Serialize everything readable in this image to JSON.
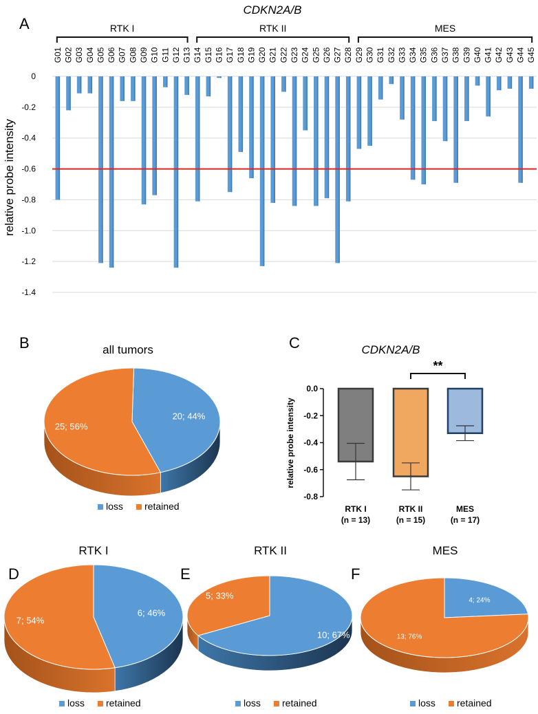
{
  "panels": {
    "A": "A",
    "B": "B",
    "C": "C",
    "D": "D",
    "E": "E",
    "F": "F"
  },
  "colors": {
    "loss": "#5b9bd5",
    "loss_side": "#1f3b55",
    "retained": "#ed7d31",
    "retained_side": "#9c4a12",
    "threshold": "#e0241b",
    "bar_rtk1": "#7f7f7f",
    "bar_rtk2": "#f0a860",
    "bar_mes": "#9db9de"
  },
  "chart_data": [
    {
      "type": "bar",
      "id": "A",
      "title": "CDKN2A/B",
      "ylabel": "relative probe intensity",
      "ylim": [
        -1.4,
        0
      ],
      "yticks": [
        "0",
        "-0.2",
        "-0.4",
        "-0.6",
        "-0.8",
        "-1.0",
        "-1.2",
        "-1.4"
      ],
      "threshold": -0.6,
      "groups": [
        {
          "name": "RTK I",
          "first": "G01",
          "last": "G13"
        },
        {
          "name": "RTK II",
          "first": "G14",
          "last": "G28"
        },
        {
          "name": "MES",
          "first": "G29",
          "last": "G45"
        }
      ],
      "categories": [
        "G01",
        "G02",
        "G03",
        "G04",
        "G05",
        "G06",
        "G07",
        "G08",
        "G09",
        "G10",
        "G11",
        "G12",
        "G13",
        "G14",
        "G15",
        "G16",
        "G17",
        "G18",
        "G19",
        "G20",
        "G21",
        "G22",
        "G23",
        "G24",
        "G25",
        "G26",
        "G27",
        "G28",
        "G29",
        "G30",
        "G31",
        "G32",
        "G33",
        "G34",
        "G35",
        "G36",
        "G37",
        "G38",
        "G39",
        "G40",
        "G41",
        "G42",
        "G43",
        "G44",
        "G45"
      ],
      "values": [
        -0.8,
        -0.22,
        -0.11,
        -0.11,
        -1.21,
        -1.24,
        -0.16,
        -0.16,
        -0.83,
        -0.77,
        -0.07,
        -1.24,
        -0.12,
        -0.81,
        -0.13,
        -0.01,
        -0.75,
        -0.49,
        -0.66,
        -1.23,
        -0.82,
        -0.1,
        -0.84,
        -0.35,
        -0.84,
        -0.79,
        -1.21,
        -0.81,
        -0.47,
        -0.45,
        -0.15,
        -0.05,
        -0.28,
        -0.67,
        -0.7,
        -0.29,
        -0.42,
        -0.69,
        -0.29,
        -0.06,
        -0.26,
        -0.09,
        -0.08,
        -0.69,
        -0.08
      ]
    },
    {
      "type": "pie",
      "id": "B",
      "title": "all tumors",
      "slices": [
        {
          "name": "loss",
          "value": 20,
          "label": "20; 44%"
        },
        {
          "name": "retained",
          "value": 25,
          "label": "25; 56%"
        }
      ],
      "legend": [
        "loss",
        "retained"
      ]
    },
    {
      "type": "bar",
      "id": "C",
      "title": "CDKN2A/B",
      "ylabel": "relative probe intensity",
      "ylim": [
        -0.8,
        0
      ],
      "yticks": [
        "0.0",
        "-0.2",
        "-0.4",
        "-0.6",
        "-0.8"
      ],
      "significance": "**",
      "categories": [
        "RTK I",
        "RTK II",
        "MES"
      ],
      "n_labels": [
        "(n = 13)",
        "(n = 15)",
        "(n = 17)"
      ],
      "values": [
        -0.54,
        -0.65,
        -0.33
      ],
      "errors": [
        0.135,
        0.1,
        0.055
      ]
    },
    {
      "type": "pie",
      "id": "D",
      "title": "RTK I",
      "slices": [
        {
          "name": "loss",
          "value": 6,
          "label": "6; 46%"
        },
        {
          "name": "retained",
          "value": 7,
          "label": "7; 54%"
        }
      ],
      "legend": [
        "loss",
        "retained"
      ]
    },
    {
      "type": "pie",
      "id": "E",
      "title": "RTK II",
      "slices": [
        {
          "name": "loss",
          "value": 10,
          "label": "10; 67%"
        },
        {
          "name": "retained",
          "value": 5,
          "label": "5; 33%"
        }
      ],
      "legend": [
        "loss",
        "retained"
      ]
    },
    {
      "type": "pie",
      "id": "F",
      "title": "MES",
      "slices": [
        {
          "name": "loss",
          "value": 4,
          "label": "4; 24%"
        },
        {
          "name": "retained",
          "value": 13,
          "label": "13; 76%"
        }
      ],
      "legend": [
        "loss",
        "retained"
      ]
    }
  ]
}
